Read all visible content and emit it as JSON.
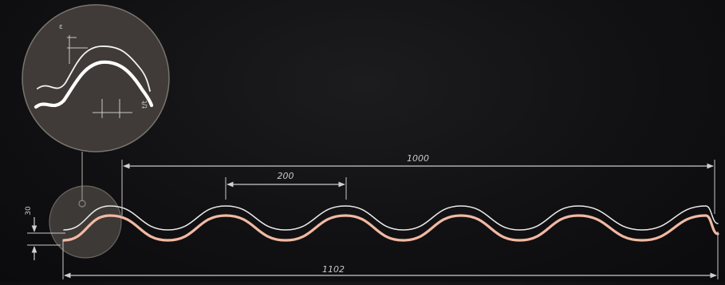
{
  "dimensions": {
    "cover_width": "1000",
    "pitch": "200",
    "total_width": "1102",
    "profile_height": "30",
    "detail_thickness": "ε",
    "detail_overlap": "t/t"
  },
  "colors": {
    "background": "#111113",
    "sheet_top": "#e8e6e6",
    "sheet_bottom": "#f2b9a2",
    "dimension_line": "#c9c9c9",
    "detail_circle": "#3a3634"
  }
}
